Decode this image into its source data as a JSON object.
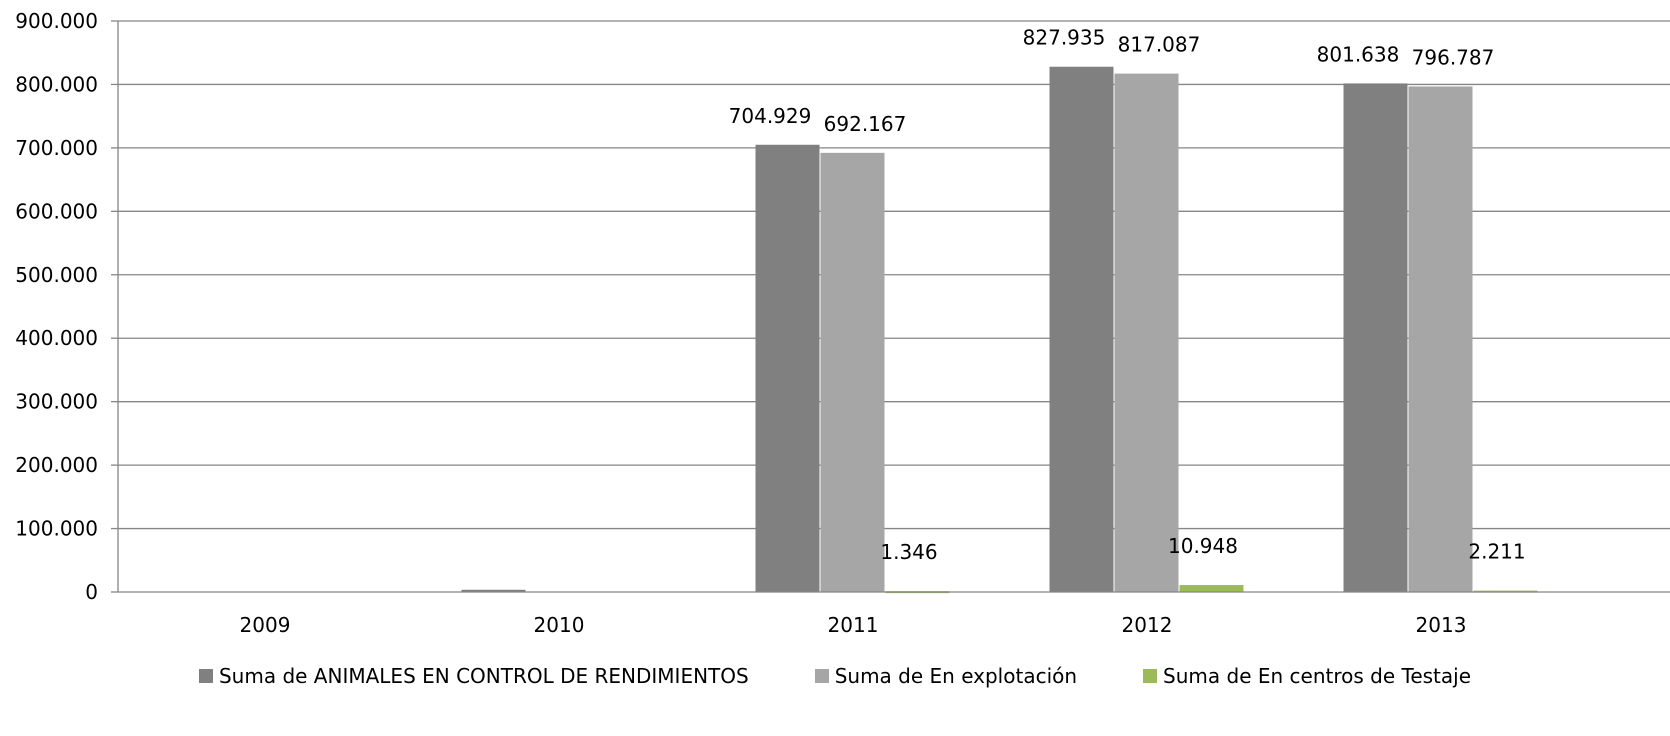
{
  "chart_data": {
    "type": "bar",
    "categories": [
      "2009",
      "2010",
      "2011",
      "2012",
      "2013"
    ],
    "series": [
      {
        "name": "Suma de ANIMALES EN CONTROL DE RENDIMIENTOS",
        "color": "#808080",
        "values": [
          0,
          3500,
          704929,
          827935,
          801638
        ],
        "labels": [
          "",
          "",
          "704.929",
          "827.935",
          "801.638"
        ]
      },
      {
        "name": "Suma de En explotación",
        "color": "#a6a6a6",
        "values": [
          0,
          0,
          692167,
          817087,
          796787
        ],
        "labels": [
          "",
          "",
          "692.167",
          "817.087",
          "796.787"
        ]
      },
      {
        "name": "Suma de En centros de Testaje",
        "color": "#9bbb59",
        "values": [
          0,
          0,
          1346,
          10948,
          2211
        ],
        "labels": [
          "",
          "",
          "1.346",
          "10.948",
          "2.211"
        ]
      }
    ],
    "y_ticks": [
      "0",
      "100.000",
      "200.000",
      "300.000",
      "400.000",
      "500.000",
      "600.000",
      "700.000",
      "800.000",
      "900.000"
    ],
    "ylim": [
      0,
      900000
    ],
    "grid": true,
    "legend_position": "bottom"
  }
}
